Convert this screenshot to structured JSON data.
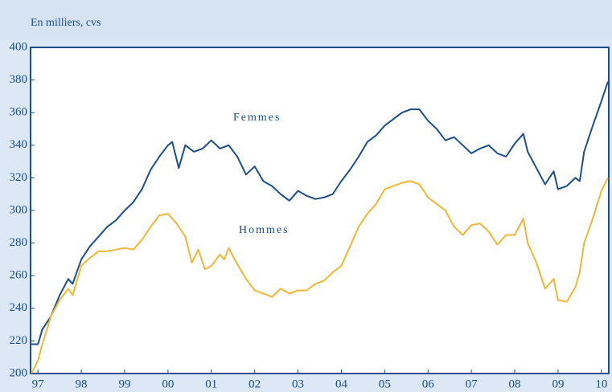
{
  "chart_data": {
    "type": "line",
    "subtitle": "En milliers, cvs",
    "xlim": [
      1996.83,
      2010.17
    ],
    "xticks": [
      {
        "value": 1997,
        "label": "97"
      },
      {
        "value": 1998,
        "label": "98"
      },
      {
        "value": 1999,
        "label": "99"
      },
      {
        "value": 2000,
        "label": "00"
      },
      {
        "value": 2001,
        "label": "01"
      },
      {
        "value": 2002,
        "label": "02"
      },
      {
        "value": 2003,
        "label": "03"
      },
      {
        "value": 2004,
        "label": "04"
      },
      {
        "value": 2005,
        "label": "05"
      },
      {
        "value": 2006,
        "label": "06"
      },
      {
        "value": 2007,
        "label": "07"
      },
      {
        "value": 2008,
        "label": "08"
      },
      {
        "value": 2009,
        "label": "09"
      },
      {
        "value": 2010,
        "label": "10"
      }
    ],
    "ylim": [
      200,
      400
    ],
    "yticks": [
      200,
      220,
      240,
      260,
      280,
      300,
      320,
      340,
      360,
      380,
      400
    ],
    "series": [
      {
        "name": "Femmes",
        "color": "#1a4f8a",
        "x": [
          1996.85,
          1997.0,
          1997.1,
          1997.3,
          1997.5,
          1997.7,
          1997.8,
          1998.0,
          1998.2,
          1998.4,
          1998.6,
          1998.8,
          1999.0,
          1999.2,
          1999.4,
          1999.6,
          1999.8,
          2000.0,
          2000.1,
          2000.25,
          2000.4,
          2000.6,
          2000.8,
          2001.0,
          2001.2,
          2001.4,
          2001.6,
          2001.8,
          2002.0,
          2002.2,
          2002.4,
          2002.6,
          2002.8,
          2003.0,
          2003.2,
          2003.4,
          2003.6,
          2003.8,
          2004.0,
          2004.2,
          2004.4,
          2004.6,
          2004.8,
          2005.0,
          2005.2,
          2005.4,
          2005.6,
          2005.8,
          2006.0,
          2006.2,
          2006.4,
          2006.6,
          2006.8,
          2007.0,
          2007.2,
          2007.4,
          2007.6,
          2007.8,
          2008.0,
          2008.2,
          2008.3,
          2008.5,
          2008.7,
          2008.9,
          2009.0,
          2009.2,
          2009.4,
          2009.5,
          2009.6,
          2009.8,
          2010.0,
          2010.15
        ],
        "values": [
          218,
          218,
          227,
          235,
          248,
          258,
          255,
          270,
          278,
          284,
          290,
          294,
          300,
          305,
          313,
          325,
          333,
          340,
          342,
          326,
          340,
          336,
          338,
          343,
          338,
          340,
          333,
          322,
          327,
          318,
          315,
          310,
          306,
          312,
          309,
          307,
          308,
          310,
          318,
          325,
          333,
          342,
          346,
          352,
          356,
          360,
          362,
          362,
          355,
          350,
          343,
          345,
          340,
          335,
          338,
          340,
          335,
          333,
          341,
          347,
          336,
          326,
          316,
          324,
          313,
          315,
          320,
          318,
          336,
          352,
          367,
          379
        ]
      },
      {
        "name": "Hommes",
        "color": "#f2b632",
        "x": [
          1996.85,
          1997.0,
          1997.1,
          1997.3,
          1997.5,
          1997.7,
          1997.8,
          1998.0,
          1998.2,
          1998.4,
          1998.6,
          1998.8,
          1999.0,
          1999.2,
          1999.4,
          1999.6,
          1999.8,
          2000.0,
          2000.2,
          2000.4,
          2000.55,
          2000.7,
          2000.85,
          2001.0,
          2001.2,
          2001.3,
          2001.4,
          2001.6,
          2001.8,
          2002.0,
          2002.2,
          2002.4,
          2002.6,
          2002.8,
          2003.0,
          2003.2,
          2003.4,
          2003.6,
          2003.8,
          2004.0,
          2004.2,
          2004.4,
          2004.6,
          2004.8,
          2005.0,
          2005.2,
          2005.4,
          2005.6,
          2005.8,
          2006.0,
          2006.2,
          2006.4,
          2006.6,
          2006.8,
          2007.0,
          2007.2,
          2007.4,
          2007.6,
          2007.8,
          2008.0,
          2008.2,
          2008.3,
          2008.5,
          2008.7,
          2008.9,
          2009.0,
          2009.2,
          2009.4,
          2009.5,
          2009.6,
          2009.8,
          2010.0,
          2010.15
        ],
        "values": [
          200,
          208,
          218,
          235,
          245,
          252,
          248,
          266,
          271,
          275,
          275,
          276,
          277,
          276,
          282,
          290,
          297,
          298,
          292,
          284,
          268,
          276,
          264,
          266,
          273,
          270,
          277,
          267,
          258,
          251,
          249,
          247,
          252,
          249,
          251,
          251,
          255,
          257,
          262,
          266,
          278,
          290,
          298,
          304,
          313,
          315,
          317,
          318,
          316,
          308,
          304,
          300,
          290,
          285,
          291,
          292,
          287,
          279,
          285,
          285,
          295,
          280,
          268,
          252,
          258,
          245,
          244,
          253,
          262,
          280,
          295,
          312,
          320
        ]
      }
    ]
  }
}
